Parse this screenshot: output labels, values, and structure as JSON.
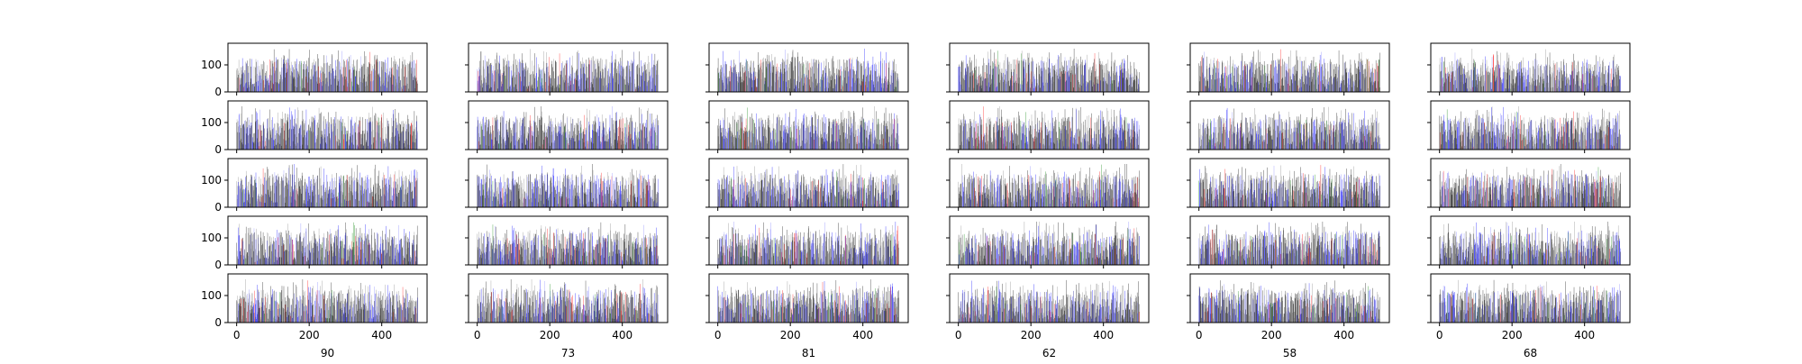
{
  "chart_data": {
    "type": "bar",
    "layout": {
      "rows": 5,
      "columns": 6,
      "sharex": true,
      "sharey": true
    },
    "x_range": [
      -24,
      525
    ],
    "y_range": [
      0,
      180
    ],
    "x_ticks": [
      0,
      200,
      400
    ],
    "y_ticks": [
      0,
      100
    ],
    "x_tick_labels": [
      "0",
      "200",
      "400"
    ],
    "y_tick_labels": [
      "0",
      "100"
    ],
    "bar_count_per_panel": 500,
    "bar_value_range": [
      10,
      160
    ],
    "bar_colors": [
      "#000000",
      "#808080",
      "#0000ff",
      "#8080ff",
      "#ff0000",
      "#008000"
    ],
    "column_labels": [
      "90",
      "73",
      "81",
      "62",
      "58",
      "68"
    ],
    "grid": false,
    "legend": "none"
  }
}
